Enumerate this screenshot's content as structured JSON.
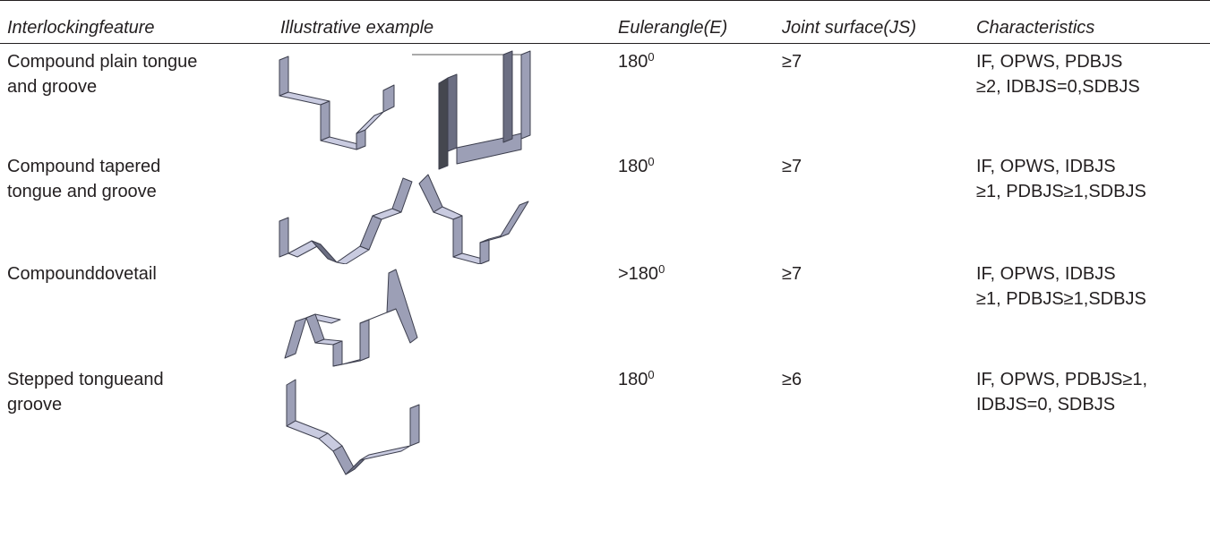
{
  "table": {
    "header": [
      "Interlockingfeature",
      "Illustrative example",
      "Eulerangle(E)",
      "Joint surface(JS)",
      "Characteristics"
    ],
    "rows": [
      {
        "feature": [
          "Compound plain tongue",
          "and groove"
        ],
        "euler": {
          "value": "180",
          "sup": "0"
        },
        "joint": "≥7",
        "characteristics": [
          "IF, OPWS, PDBJS",
          "≥2, IDBJS=0,SDBJS"
        ]
      },
      {
        "feature": [
          "Compound tapered",
          "tongue and groove"
        ],
        "euler": {
          "value": "180",
          "sup": "0"
        },
        "joint": "≥7",
        "characteristics": [
          "IF, OPWS,  IDBJS",
          "≥1, PDBJS≥1,SDBJS"
        ]
      },
      {
        "feature": [
          "Compounddovetail"
        ],
        "euler": {
          "value": ">180",
          "sup": "0"
        },
        "joint": "≥7",
        "characteristics": [
          "IF, OPWS, IDBJS",
          "≥1, PDBJS≥1,SDBJS"
        ]
      },
      {
        "feature": [
          "Stepped tongueand",
          "groove"
        ],
        "euler": {
          "value": "180",
          "sup": "0"
        },
        "joint": "≥6",
        "characteristics": [
          "IF, OPWS, PDBJS≥1,",
          "IDBJS=0, SDBJS"
        ]
      }
    ]
  }
}
